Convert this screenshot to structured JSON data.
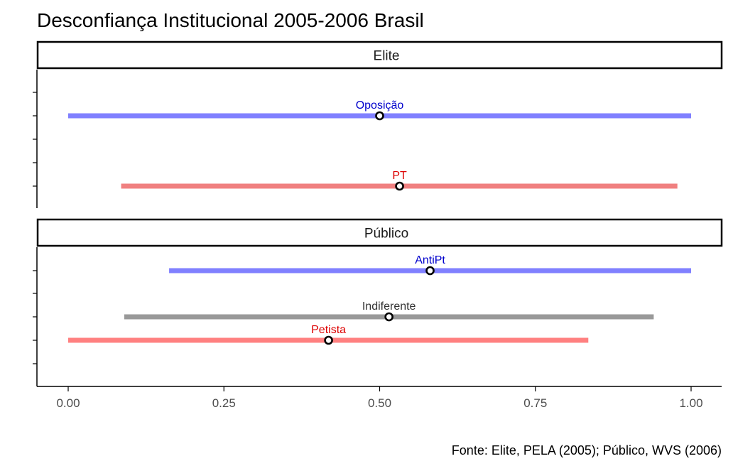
{
  "chart_data": {
    "type": "dot-range",
    "title": "Desconfiança Institucional 2005-2006 Brasil",
    "caption": "Fonte: Elite, PELA (2005); Público, WVS (2006)",
    "xlim": [
      -0.05,
      1.05
    ],
    "x_ticks": [
      "0.00",
      "0.25",
      "0.50",
      "0.75",
      "1.00"
    ],
    "x_tick_values": [
      0,
      0.25,
      0.5,
      0.75,
      1.0
    ],
    "grid": false,
    "colors": {
      "oposicao": "#8080ff",
      "pt": "#f08080",
      "indiferente": "#999999",
      "label_blue": "#0000cc",
      "label_red": "#dd0000",
      "label_gray": "#333333"
    },
    "panels": [
      {
        "name": "Elite",
        "series": [
          {
            "name": "Oposição",
            "low": 0.0,
            "mean": 0.5,
            "high": 1.0,
            "color": "#8080ff",
            "label_color": "#0000cc"
          },
          {
            "name": "PT",
            "low": 0.085,
            "mean": 0.532,
            "high": 0.978,
            "color": "#f08080",
            "label_color": "#dd0000"
          }
        ]
      },
      {
        "name": "Público",
        "series": [
          {
            "name": "AntiPt",
            "low": 0.162,
            "mean": 0.581,
            "high": 1.0,
            "color": "#8080ff",
            "label_color": "#0000cc"
          },
          {
            "name": "Indiferente",
            "low": 0.09,
            "mean": 0.515,
            "high": 0.94,
            "color": "#999999",
            "label_color": "#333333"
          },
          {
            "name": "Petista",
            "low": 0.0,
            "mean": 0.418,
            "high": 0.835,
            "color": "#ff8080",
            "label_color": "#dd0000"
          }
        ]
      }
    ]
  }
}
